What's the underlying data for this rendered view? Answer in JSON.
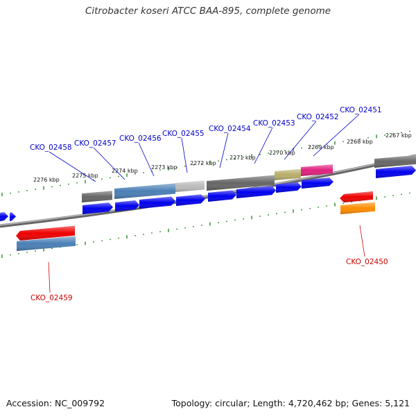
{
  "header": {
    "title": "Citrobacter koseri ATCC BAA-895, complete genome"
  },
  "footer": {
    "accession": "Accession: NC_009792",
    "summary": "Topology: circular; Length: 4,720,462 bp; Genes: 5,121"
  },
  "colors": {
    "plus_label": "#0000cc",
    "minus_label": "#cc0000",
    "tick": "#2a8a2a",
    "backbone": "#888888",
    "cds_forward": "#0000ee",
    "cds_reverse": "#ee0000",
    "gene_gray": "#666666",
    "gene_steel": "#4a7fb5",
    "gene_light_gray": "#bbbbbb",
    "gene_khaki": "#b8ad6a",
    "gene_magenta": "#e0207f",
    "gene_orange": "#ff8c00"
  },
  "scale_labels": [
    "2276 kbp",
    "2275 kbp",
    "2274 kbp",
    "2273 kbp",
    "2272 kbp",
    "2271 kbp",
    "2270 kbp",
    "2269 kbp",
    "2268 kbp",
    "2267 kbp"
  ],
  "plus_genes": [
    "CKO_02458",
    "CKO_02457",
    "CKO_02456",
    "CKO_02455",
    "CKO_02454",
    "CKO_02453",
    "CKO_02452",
    "CKO_02451"
  ],
  "minus_genes": [
    "CKO_02459",
    "CKO_02450"
  ]
}
